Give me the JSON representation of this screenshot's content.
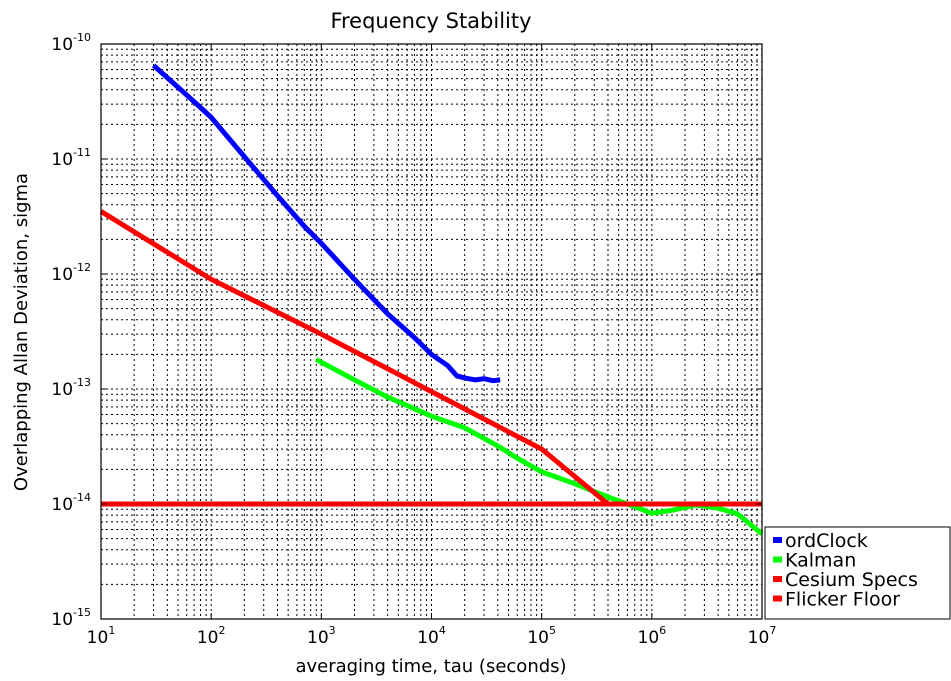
{
  "chart_data": {
    "type": "line",
    "title": "Frequency Stability",
    "xlabel": "averaging time, tau (seconds)",
    "ylabel": "Overlapping Allan Deviation, sigma",
    "xscale": "log",
    "yscale": "log",
    "xlim": [
      10,
      10000000
    ],
    "ylim": [
      1e-15,
      1e-10
    ],
    "grid": true,
    "grid_minor": true,
    "legend_placement": "outside-right-bottom",
    "x_ticks": [
      {
        "base": "10",
        "exp": "1",
        "value": 10
      },
      {
        "base": "10",
        "exp": "2",
        "value": 100
      },
      {
        "base": "10",
        "exp": "3",
        "value": 1000
      },
      {
        "base": "10",
        "exp": "4",
        "value": 10000
      },
      {
        "base": "10",
        "exp": "5",
        "value": 100000
      },
      {
        "base": "10",
        "exp": "6",
        "value": 1000000
      },
      {
        "base": "10",
        "exp": "7",
        "value": 10000000
      }
    ],
    "y_ticks": [
      {
        "base": "10",
        "exp": "-15",
        "value": 1e-15
      },
      {
        "base": "10",
        "exp": "-14",
        "value": 1e-14
      },
      {
        "base": "10",
        "exp": "-13",
        "value": 1e-13
      },
      {
        "base": "10",
        "exp": "-12",
        "value": 1e-12
      },
      {
        "base": "10",
        "exp": "-11",
        "value": 1e-11
      },
      {
        "base": "10",
        "exp": "-10",
        "value": 1e-10
      }
    ],
    "series": [
      {
        "name": "ordClock",
        "color": "#0000ff",
        "x": [
          30,
          60,
          100,
          200,
          400,
          700,
          1000,
          2000,
          4000,
          7000,
          10000,
          14000,
          17000,
          20000,
          25000,
          30000,
          36000,
          42000
        ],
        "y": [
          6.5e-11,
          3.6e-11,
          2.3e-11,
          1.05e-11,
          4.8e-12,
          2.6e-12,
          1.85e-12,
          9e-13,
          4.5e-13,
          2.8e-13,
          2e-13,
          1.6e-13,
          1.3e-13,
          1.25e-13,
          1.2e-13,
          1.23e-13,
          1.18e-13,
          1.2e-13
        ]
      },
      {
        "name": "Kalman",
        "color": "#00ff00",
        "x": [
          900,
          2000,
          4000,
          10000,
          20000,
          40000,
          60000,
          100000,
          200000,
          400000,
          700000,
          1000000,
          1500000,
          2500000,
          4000000,
          6000000,
          10000000
        ],
        "y": [
          1.8e-13,
          1.2e-13,
          8.5e-14,
          5.8e-14,
          4.6e-14,
          3.2e-14,
          2.5e-14,
          1.9e-14,
          1.5e-14,
          1.15e-14,
          9.5e-15,
          8.3e-15,
          8.8e-15,
          9.8e-15,
          9.2e-15,
          8.2e-15,
          5.5e-15
        ]
      },
      {
        "name": "Cesium Specs",
        "color": "#ff0000",
        "x": [
          10,
          100,
          1000,
          10000,
          100000,
          400000
        ],
        "y": [
          3.5e-12,
          9e-13,
          3e-13,
          9.5e-14,
          3e-14,
          1e-14
        ]
      },
      {
        "name": "Flicker Floor",
        "color": "#ff0000",
        "x": [
          10,
          10000000
        ],
        "y": [
          1e-14,
          1e-14
        ]
      }
    ]
  }
}
